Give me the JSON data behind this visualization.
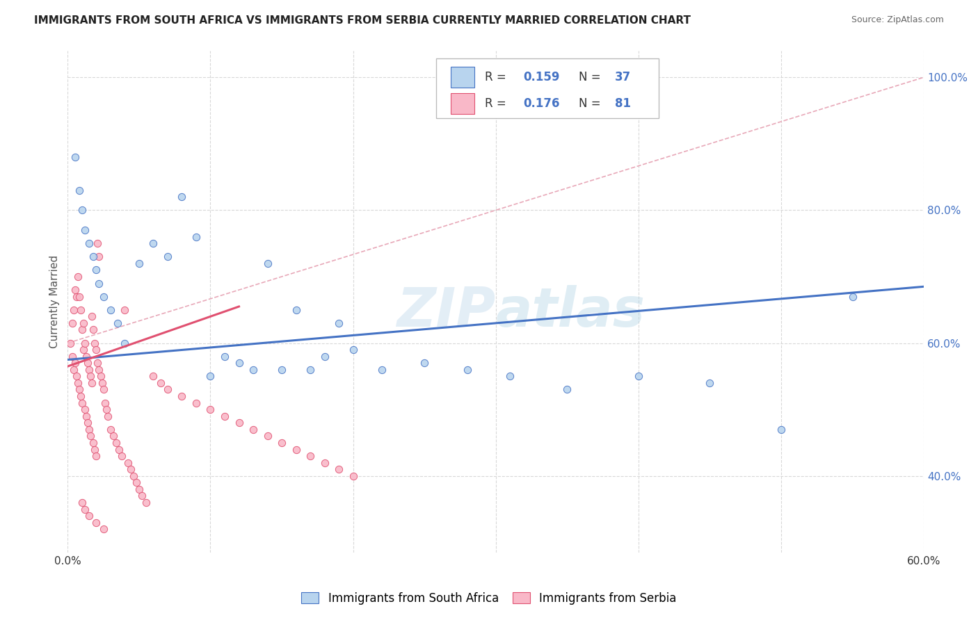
{
  "title": "IMMIGRANTS FROM SOUTH AFRICA VS IMMIGRANTS FROM SERBIA CURRENTLY MARRIED CORRELATION CHART",
  "source": "Source: ZipAtlas.com",
  "ylabel": "Currently Married",
  "watermark": "ZIPAtlas",
  "xlim": [
    0.0,
    0.6
  ],
  "ylim": [
    0.285,
    1.04
  ],
  "xticks": [
    0.0,
    0.1,
    0.2,
    0.3,
    0.4,
    0.5,
    0.6
  ],
  "xticklabels": [
    "0.0%",
    "",
    "",
    "",
    "",
    "",
    "60.0%"
  ],
  "yticks": [
    0.4,
    0.6,
    0.8,
    1.0
  ],
  "yticklabels": [
    "40.0%",
    "60.0%",
    "80.0%",
    "100.0%"
  ],
  "south_africa_color": "#b8d4ee",
  "serbia_color": "#f9b8c8",
  "south_africa_line_color": "#4472c4",
  "serbia_line_color": "#e05070",
  "diagonal_line_color": "#e8a8b8",
  "legend_label1": "Immigrants from South Africa",
  "legend_label2": "Immigrants from Serbia",
  "south_africa_x": [
    0.005,
    0.008,
    0.01,
    0.012,
    0.015,
    0.018,
    0.02,
    0.022,
    0.025,
    0.03,
    0.035,
    0.04,
    0.05,
    0.06,
    0.07,
    0.08,
    0.09,
    0.1,
    0.11,
    0.12,
    0.13,
    0.14,
    0.15,
    0.16,
    0.17,
    0.18,
    0.19,
    0.2,
    0.22,
    0.25,
    0.28,
    0.31,
    0.35,
    0.4,
    0.45,
    0.5,
    0.55
  ],
  "south_africa_y": [
    0.88,
    0.83,
    0.8,
    0.77,
    0.75,
    0.73,
    0.71,
    0.69,
    0.67,
    0.65,
    0.63,
    0.6,
    0.72,
    0.75,
    0.73,
    0.82,
    0.76,
    0.55,
    0.58,
    0.57,
    0.56,
    0.72,
    0.56,
    0.65,
    0.56,
    0.58,
    0.63,
    0.59,
    0.56,
    0.57,
    0.56,
    0.55,
    0.53,
    0.55,
    0.54,
    0.47,
    0.67
  ],
  "serbia_x": [
    0.002,
    0.003,
    0.003,
    0.004,
    0.004,
    0.005,
    0.005,
    0.006,
    0.006,
    0.007,
    0.007,
    0.008,
    0.008,
    0.009,
    0.009,
    0.01,
    0.01,
    0.011,
    0.011,
    0.012,
    0.012,
    0.013,
    0.013,
    0.014,
    0.014,
    0.015,
    0.015,
    0.016,
    0.016,
    0.017,
    0.017,
    0.018,
    0.018,
    0.019,
    0.019,
    0.02,
    0.02,
    0.021,
    0.021,
    0.022,
    0.022,
    0.023,
    0.024,
    0.025,
    0.026,
    0.027,
    0.028,
    0.03,
    0.032,
    0.034,
    0.036,
    0.038,
    0.04,
    0.042,
    0.044,
    0.046,
    0.048,
    0.05,
    0.052,
    0.055,
    0.06,
    0.065,
    0.07,
    0.08,
    0.09,
    0.1,
    0.11,
    0.12,
    0.13,
    0.14,
    0.15,
    0.16,
    0.17,
    0.18,
    0.19,
    0.2,
    0.01,
    0.012,
    0.015,
    0.02,
    0.025
  ],
  "serbia_y": [
    0.6,
    0.63,
    0.58,
    0.65,
    0.56,
    0.68,
    0.57,
    0.67,
    0.55,
    0.7,
    0.54,
    0.67,
    0.53,
    0.65,
    0.52,
    0.62,
    0.51,
    0.63,
    0.59,
    0.6,
    0.5,
    0.58,
    0.49,
    0.57,
    0.48,
    0.56,
    0.47,
    0.55,
    0.46,
    0.54,
    0.64,
    0.62,
    0.45,
    0.6,
    0.44,
    0.59,
    0.43,
    0.57,
    0.75,
    0.56,
    0.73,
    0.55,
    0.54,
    0.53,
    0.51,
    0.5,
    0.49,
    0.47,
    0.46,
    0.45,
    0.44,
    0.43,
    0.65,
    0.42,
    0.41,
    0.4,
    0.39,
    0.38,
    0.37,
    0.36,
    0.55,
    0.54,
    0.53,
    0.52,
    0.51,
    0.5,
    0.49,
    0.48,
    0.47,
    0.46,
    0.45,
    0.44,
    0.43,
    0.42,
    0.41,
    0.4,
    0.36,
    0.35,
    0.34,
    0.33,
    0.32
  ]
}
